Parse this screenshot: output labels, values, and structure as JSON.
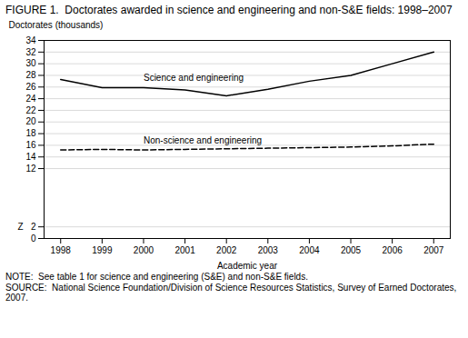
{
  "chart_data": {
    "type": "line",
    "title": "FIGURE 1.  Doctorates awarded in science and engineering and non-S&E fields: 1998–2007",
    "xlabel": "Academic year",
    "ylabel": "Doctorates (thousands)",
    "x": [
      1998,
      1999,
      2000,
      2001,
      2002,
      2003,
      2004,
      2005,
      2006,
      2007
    ],
    "series": [
      {
        "name": "Science and engineering",
        "color": "#000000",
        "line_style": "solid",
        "values": [
          27.3,
          25.9,
          25.9,
          25.5,
          24.5,
          25.6,
          27.0,
          28.0,
          30.0,
          32.0
        ]
      },
      {
        "name": "Non-science and engineering",
        "color": "#000000",
        "line_style": "dashed",
        "values": [
          15.2,
          15.3,
          15.2,
          15.3,
          15.4,
          15.5,
          15.6,
          15.7,
          15.9,
          16.2
        ]
      }
    ],
    "xlim": [
      1997.6,
      2007.4
    ],
    "xticks": [
      1998,
      1999,
      2000,
      2001,
      2002,
      2003,
      2004,
      2005,
      2006,
      2007
    ],
    "ylim": [
      0,
      34
    ],
    "yticks": [
      0,
      2,
      12,
      14,
      16,
      18,
      20,
      22,
      24,
      26,
      28,
      30,
      32,
      34
    ],
    "grid": "y",
    "annotations": [
      {
        "text": "Z",
        "y": 2
      }
    ],
    "note": "NOTE:  See table 1 for science and engineering (S&E) and non-S&E fields.",
    "source": "SOURCE:  National Science Foundation/Division of Science Resources Statistics, Survey of Earned Doctorates, 2007."
  }
}
